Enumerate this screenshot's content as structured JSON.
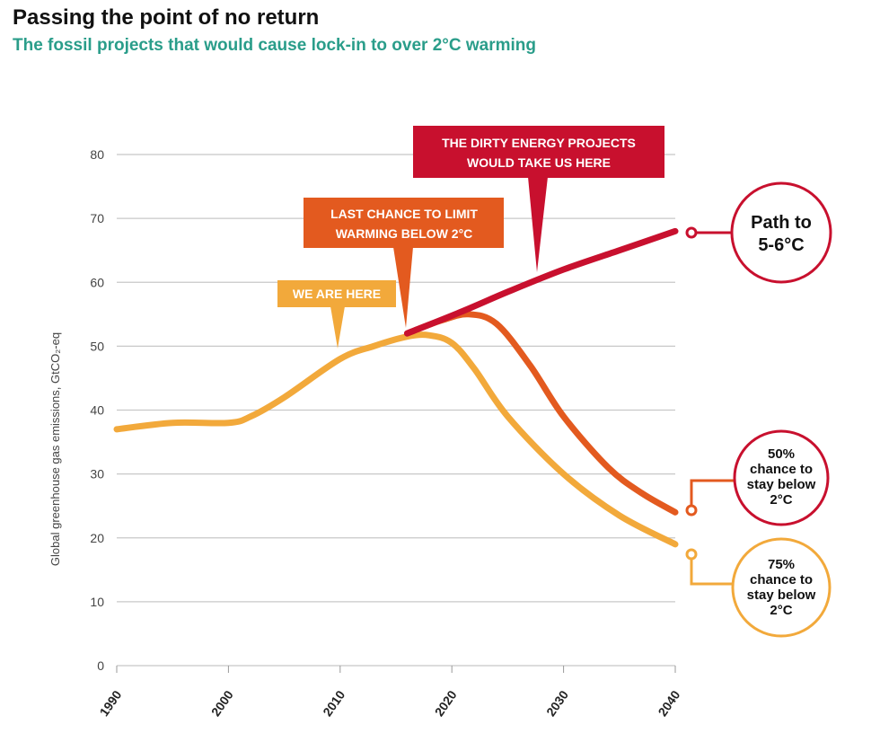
{
  "header": {
    "title": "Passing the point of no return",
    "subtitle": "The fossil projects that would cause lock-in to over 2°C warming"
  },
  "chart_data": {
    "type": "line",
    "title": "Passing the point of no return",
    "subtitle": "The fossil projects that would cause lock-in to over 2°C warming",
    "xlabel": "",
    "ylabel": "Global greenhouse gas emissions, GtCO₂-eq",
    "xlim": [
      1990,
      2040
    ],
    "ylim": [
      0,
      80
    ],
    "xticks": [
      1990,
      2000,
      2010,
      2020,
      2030,
      2040
    ],
    "yticks": [
      0,
      10,
      20,
      30,
      40,
      50,
      60,
      70,
      80
    ],
    "grid": true,
    "colors": {
      "dirty": "#c8102e",
      "mid": "#e35a1f",
      "low": "#f2a93b",
      "grid": "#c8c8c8"
    },
    "series": [
      {
        "name": "Path to 5-6°C",
        "color": "#c8102e",
        "x": [
          2016,
          2021,
          2025,
          2030,
          2035,
          2040
        ],
        "y": [
          52,
          55.5,
          58.5,
          62,
          65,
          68
        ]
      },
      {
        "name": "50% chance to stay below 2°C",
        "color": "#e35a1f",
        "x": [
          2016,
          2019,
          2021.5,
          2024,
          2027,
          2030,
          2034,
          2037,
          2040
        ],
        "y": [
          52,
          54,
          55,
          53.5,
          47,
          39,
          31,
          27,
          24
        ]
      },
      {
        "name": "75% chance to stay below 2°C",
        "color": "#f2a93b",
        "x": [
          1990,
          1995,
          2000,
          2002,
          2005,
          2010,
          2013,
          2016,
          2018,
          2020,
          2022,
          2025,
          2030,
          2035,
          2040
        ],
        "y": [
          37,
          38,
          38,
          39,
          42,
          48,
          50,
          51.5,
          51.7,
          50.5,
          46.5,
          39,
          30,
          23.5,
          19
        ]
      }
    ],
    "annotations": {
      "we_are_here": "WE ARE HERE",
      "last_chance_1": "LAST CHANCE TO LIMIT",
      "last_chance_2": "WARMING BELOW 2°C",
      "dirty_1": "THE DIRTY ENERGY PROJECTS",
      "dirty_2": "WOULD TAKE US HERE"
    },
    "callouts": {
      "path_1": "Path to",
      "path_2": "5-6°C",
      "fifty_1": "50%",
      "fifty_2": "chance to",
      "fifty_3": "stay below",
      "fifty_4": "2°C",
      "seventyfive_1": "75%",
      "seventyfive_2": "chance to",
      "seventyfive_3": "stay below",
      "seventyfive_4": "2°C"
    }
  }
}
